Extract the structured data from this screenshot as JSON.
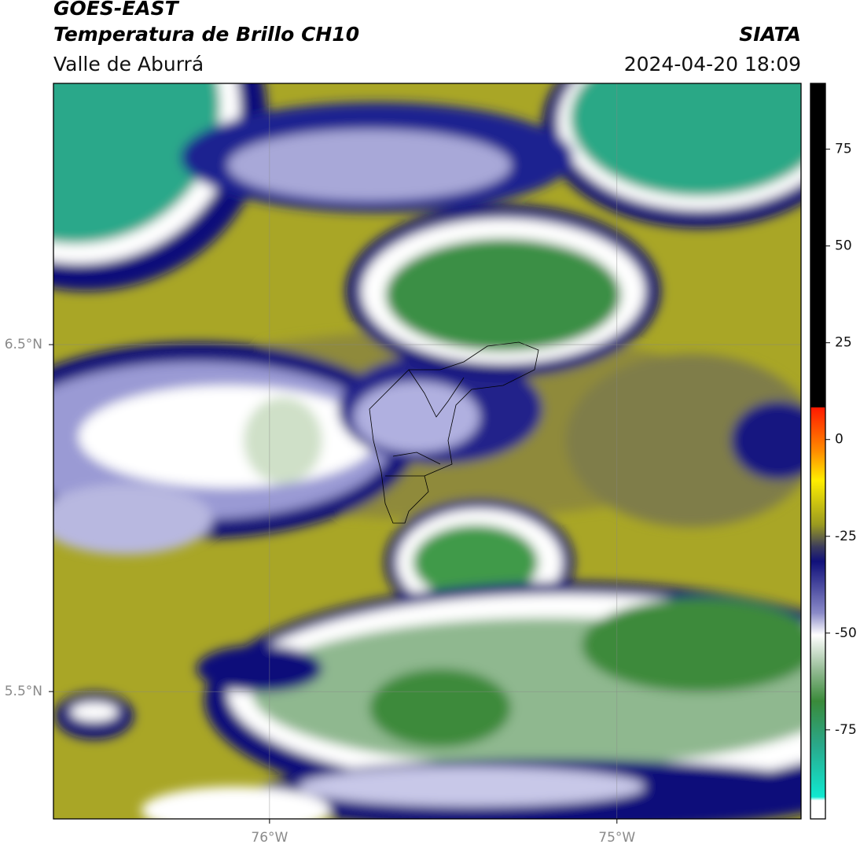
{
  "header": {
    "title": "GOES-EAST",
    "subtitle": "Temperatura de Brillo CH10",
    "region": "Valle de Aburrá",
    "source": "SIATA",
    "timestamp": "2024-04-20 18:09"
  },
  "map": {
    "xlim": [
      -76.622,
      -74.47
    ],
    "ylim": [
      5.133,
      7.253
    ],
    "xticks": [
      {
        "value": -76,
        "label": "76°W"
      },
      {
        "value": -75,
        "label": "75°W"
      }
    ],
    "yticks": [
      {
        "value": 6.5,
        "label": "6.5°N"
      },
      {
        "value": 5.5,
        "label": "5.5°N"
      }
    ],
    "grid": true
  },
  "colorbar": {
    "lim": [
      -98,
      92
    ],
    "ticks": [
      75,
      50,
      25,
      0,
      -25,
      -50,
      -75
    ]
  }
}
